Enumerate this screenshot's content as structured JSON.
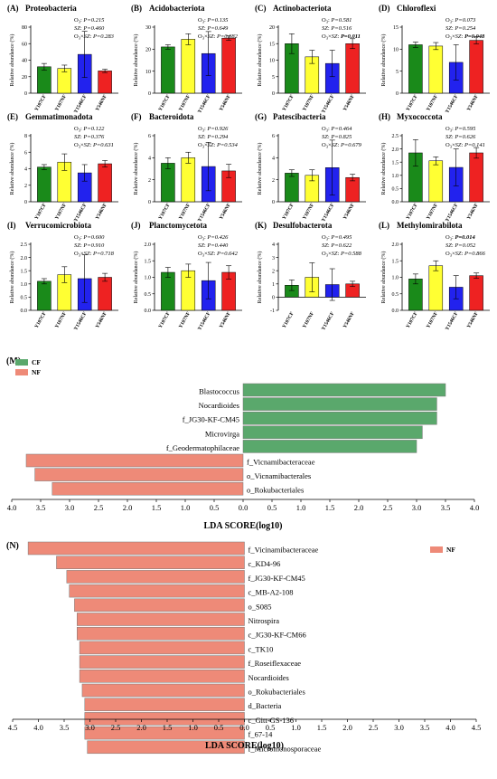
{
  "colors": {
    "Y107CF": "#1a8a1a",
    "Y107NF": "#ffff33",
    "Y1546CF": "#2222ee",
    "Y546NF": "#ee2222",
    "CF": "#5aa86c",
    "NF": "#ee8a78"
  },
  "chart_data": [
    {
      "type": "bar",
      "label": "(A)",
      "title": "Proteobacteria",
      "ylabel": "Relative abundance (%)",
      "categories": [
        "Y107CF",
        "Y107NF",
        "Y1546CF",
        "Y546NF"
      ],
      "ylim": [
        0,
        80
      ],
      "yticks": [
        0,
        20,
        40,
        60,
        80
      ],
      "values": [
        32,
        30,
        47,
        27
      ],
      "errors": [
        4,
        4,
        28,
        2
      ],
      "stats": [
        {
          "label": "O",
          "sub": "3",
          "p": "P=0.215",
          "bold": false
        },
        {
          "label": "SZ",
          "sub": "",
          "p": "P=0.460",
          "bold": false
        },
        {
          "label": "O",
          "sub": "3",
          "x": "SZ",
          "p": "P=0.283",
          "bold": false
        }
      ]
    },
    {
      "type": "bar",
      "label": "(B)",
      "title": "Acidobacteriota",
      "ylabel": "Relative abundance (%)",
      "categories": [
        "Y107CF",
        "Y107NF",
        "Y1546CF",
        "Y546NF"
      ],
      "ylim": [
        0,
        30
      ],
      "yticks": [
        0,
        10,
        20,
        30
      ],
      "values": [
        21,
        24.5,
        18,
        25
      ],
      "errors": [
        1,
        2.5,
        10,
        1
      ],
      "stats": [
        {
          "label": "O",
          "sub": "3",
          "p": "P=0.135",
          "bold": false
        },
        {
          "label": "SZ",
          "sub": "",
          "p": "P=0.649",
          "bold": false
        },
        {
          "label": "O",
          "sub": "3",
          "x": "SZ",
          "p": "P=0.682",
          "bold": false
        }
      ]
    },
    {
      "type": "bar",
      "label": "(C)",
      "title": "Actinobacteriota",
      "ylabel": "Relative abundance (%)",
      "categories": [
        "Y107CF",
        "Y107NF",
        "Y1546CF",
        "Y546NF"
      ],
      "ylim": [
        0,
        20
      ],
      "yticks": [
        0,
        5,
        10,
        15,
        20
      ],
      "values": [
        15,
        11,
        9,
        15
      ],
      "errors": [
        3,
        2,
        4,
        1.5
      ],
      "stats": [
        {
          "label": "O",
          "sub": "3",
          "p": "P=0.581",
          "bold": false
        },
        {
          "label": "SZ",
          "sub": "",
          "p": "P=0.516",
          "bold": false
        },
        {
          "label": "O",
          "sub": "3",
          "x": "SZ",
          "p": "P=0.011",
          "bold": true
        }
      ]
    },
    {
      "type": "bar",
      "label": "(D)",
      "title": "Chloroflexi",
      "ylabel": "Relative abundance (%)",
      "categories": [
        "Y107CF",
        "Y107NF",
        "Y1546CF",
        "Y546NF"
      ],
      "ylim": [
        0,
        15
      ],
      "yticks": [
        0,
        5,
        10,
        15
      ],
      "values": [
        11,
        10.7,
        7,
        12
      ],
      "errors": [
        0.6,
        0.8,
        4,
        0.8
      ],
      "stats": [
        {
          "label": "O",
          "sub": "3",
          "p": "P=0.073",
          "bold": false
        },
        {
          "label": "SZ",
          "sub": "",
          "p": "P=0.254",
          "bold": false
        },
        {
          "label": "O",
          "sub": "3",
          "x": "SZ",
          "p": "P=0.048",
          "bold": true
        }
      ]
    },
    {
      "type": "bar",
      "label": "(E)",
      "title": "Gemmatimonadota",
      "ylabel": "Relative abundance (%)",
      "categories": [
        "Y107CF",
        "Y107NF",
        "Y1546CF",
        "Y546NF"
      ],
      "ylim": [
        0,
        8
      ],
      "yticks": [
        0,
        2,
        4,
        6,
        8
      ],
      "values": [
        4.2,
        4.8,
        3.5,
        4.6
      ],
      "errors": [
        0.3,
        1,
        1,
        0.4
      ],
      "stats": [
        {
          "label": "O",
          "sub": "3",
          "p": "P=0.122",
          "bold": false
        },
        {
          "label": "SZ",
          "sub": "",
          "p": "P=0.376",
          "bold": false
        },
        {
          "label": "O",
          "sub": "3",
          "x": "SZ",
          "p": "P=0.631",
          "bold": false
        }
      ]
    },
    {
      "type": "bar",
      "label": "(F)",
      "title": "Bacteroidota",
      "ylabel": "Relative abundance (%)",
      "categories": [
        "Y107CF",
        "Y107NF",
        "Y1546CF",
        "Y546NF"
      ],
      "ylim": [
        0,
        6
      ],
      "yticks": [
        0,
        2,
        4,
        6
      ],
      "values": [
        3.5,
        4,
        3.2,
        2.8
      ],
      "errors": [
        0.5,
        0.5,
        2.2,
        0.6
      ],
      "stats": [
        {
          "label": "O",
          "sub": "3",
          "p": "P=0.926",
          "bold": false
        },
        {
          "label": "SZ",
          "sub": "",
          "p": "P=0.294",
          "bold": false
        },
        {
          "label": "O",
          "sub": "3",
          "x": "SZ",
          "p": "P=0.534",
          "bold": false
        }
      ]
    },
    {
      "type": "bar",
      "label": "(G)",
      "title": "Patescibacteria",
      "ylabel": "Relative abundance (%)",
      "categories": [
        "Y107CF",
        "Y107NF",
        "Y1546CF",
        "Y546NF"
      ],
      "ylim": [
        0,
        6
      ],
      "yticks": [
        0,
        2,
        4,
        6
      ],
      "values": [
        2.6,
        2.4,
        3.1,
        2.2
      ],
      "errors": [
        0.3,
        0.5,
        2.5,
        0.3
      ],
      "stats": [
        {
          "label": "O",
          "sub": "3",
          "p": "P=0.464",
          "bold": false
        },
        {
          "label": "SZ",
          "sub": "",
          "p": "P=0.825",
          "bold": false
        },
        {
          "label": "O",
          "sub": "3",
          "x": "SZ",
          "p": "P=0.679",
          "bold": false
        }
      ]
    },
    {
      "type": "bar",
      "label": "(H)",
      "title": "Myxococcota",
      "ylabel": "Relative abundance (%)",
      "categories": [
        "Y107CF",
        "Y107NF",
        "Y1546CF",
        "Y546NF"
      ],
      "ylim": [
        0,
        2.5
      ],
      "yticks": [
        0,
        0.5,
        1.0,
        1.5,
        2.0,
        2.5
      ],
      "values": [
        1.85,
        1.55,
        1.3,
        1.85
      ],
      "errors": [
        0.5,
        0.15,
        0.7,
        0.2
      ],
      "stats": [
        {
          "label": "O",
          "sub": "3",
          "p": "P=0.595",
          "bold": false
        },
        {
          "label": "SZ",
          "sub": "",
          "p": "P=0.626",
          "bold": false
        },
        {
          "label": "O",
          "sub": "3",
          "x": "SZ",
          "p": "P=0.141",
          "bold": false
        }
      ]
    },
    {
      "type": "bar",
      "label": "(I)",
      "title": "Verrucomicrobiota",
      "ylabel": "Relative abundance (%)",
      "categories": [
        "Y107CF",
        "Y107NF",
        "Y1546CF",
        "Y546NF"
      ],
      "ylim": [
        0,
        2.5
      ],
      "yticks": [
        0,
        0.5,
        1.0,
        1.5,
        2.0,
        2.5
      ],
      "values": [
        1.1,
        1.35,
        1.2,
        1.25
      ],
      "errors": [
        0.1,
        0.3,
        0.9,
        0.15
      ],
      "stats": [
        {
          "label": "O",
          "sub": "3",
          "p": "P=0.600",
          "bold": false
        },
        {
          "label": "SZ",
          "sub": "",
          "p": "P=0.910",
          "bold": false
        },
        {
          "label": "O",
          "sub": "3",
          "x": "SZ",
          "p": "P=0.718",
          "bold": false
        }
      ]
    },
    {
      "type": "bar",
      "label": "(J)",
      "title": "Planctomycetota",
      "ylabel": "Relative abundance (%)",
      "categories": [
        "Y107CF",
        "Y107NF",
        "Y1546CF",
        "Y546NF"
      ],
      "ylim": [
        0,
        2.0
      ],
      "yticks": [
        0,
        0.5,
        1.0,
        1.5,
        2.0
      ],
      "values": [
        1.15,
        1.2,
        0.9,
        1.15
      ],
      "errors": [
        0.15,
        0.2,
        0.55,
        0.2
      ],
      "stats": [
        {
          "label": "O",
          "sub": "3",
          "p": "P=0.426",
          "bold": false
        },
        {
          "label": "SZ",
          "sub": "",
          "p": "P=0.440",
          "bold": false
        },
        {
          "label": "O",
          "sub": "3",
          "x": "SZ",
          "p": "P=0.642",
          "bold": false
        }
      ]
    },
    {
      "type": "bar",
      "label": "(K)",
      "title": "Desulfobacterota",
      "ylabel": "Relative abundance (%)",
      "categories": [
        "Y107CF",
        "Y107NF",
        "Y1546CF",
        "Y546NF"
      ],
      "ylim": [
        -1,
        4
      ],
      "yticks": [
        -1,
        0,
        1,
        2,
        3,
        4
      ],
      "values": [
        0.9,
        1.5,
        0.95,
        1.0
      ],
      "errors": [
        0.4,
        1.1,
        1.2,
        0.2
      ],
      "stats": [
        {
          "label": "O",
          "sub": "3",
          "p": "P=0.495",
          "bold": false
        },
        {
          "label": "SZ",
          "sub": "",
          "p": "P=0.622",
          "bold": false
        },
        {
          "label": "O",
          "sub": "3",
          "x": "SZ",
          "p": "P=0.588",
          "bold": false
        }
      ]
    },
    {
      "type": "bar",
      "label": "(L)",
      "title": "Methylomirabilota",
      "ylabel": "Relative abundance (%)",
      "categories": [
        "Y107CF",
        "Y107NF",
        "Y1546CF",
        "Y546NF"
      ],
      "ylim": [
        0,
        2.0
      ],
      "yticks": [
        0,
        0.5,
        1.0,
        1.5,
        2.0
      ],
      "values": [
        0.95,
        1.35,
        0.7,
        1.05
      ],
      "errors": [
        0.15,
        0.15,
        0.35,
        0.08
      ],
      "stats": [
        {
          "label": "O",
          "sub": "3",
          "p": "P=0.014",
          "bold": true
        },
        {
          "label": "SZ",
          "sub": "",
          "p": "P=0.052",
          "bold": false
        },
        {
          "label": "O",
          "sub": "3",
          "x": "SZ",
          "p": "P=0.866",
          "bold": false
        }
      ]
    },
    {
      "type": "bar",
      "orientation": "horizontal",
      "label": "(M)",
      "xlabel": "LDA SCORE(log10)",
      "xlim": [
        -4,
        4
      ],
      "xticks": [
        "4.0",
        "3.5",
        "3.0",
        "2.5",
        "2.0",
        "1.5",
        "1.0",
        "0.5",
        "0.0",
        "0.5",
        "1.0",
        "1.5",
        "2.0",
        "2.5",
        "3.0",
        "3.5",
        "4.0"
      ],
      "legend": [
        "CF",
        "NF"
      ],
      "series": [
        {
          "name": "CF",
          "items": [
            {
              "name": "Blastococcus",
              "value": 3.5
            },
            {
              "name": "Nocardioides",
              "value": 3.35
            },
            {
              "name": "f_JG30-KF-CM45",
              "value": 3.35
            },
            {
              "name": "Microvirga",
              "value": 3.1
            },
            {
              "name": "f_Geodermatophilaceae",
              "value": 3.0
            }
          ]
        },
        {
          "name": "NF",
          "items": [
            {
              "name": "f_Vicnamibacteraceae",
              "value": 3.75
            },
            {
              "name": "o_Vicnamibacterales",
              "value": 3.6
            },
            {
              "name": "o_Rokubacteriales",
              "value": 3.3
            }
          ]
        }
      ]
    },
    {
      "type": "bar",
      "orientation": "horizontal",
      "label": "(N)",
      "xlabel": "LDA SCORE(log10)",
      "xlim": [
        -4.5,
        4.5
      ],
      "xticks": [
        "4.5",
        "4.0",
        "3.5",
        "3.0",
        "2.5",
        "2.0",
        "1.5",
        "1.0",
        "0.5",
        "0.0",
        "0.5",
        "1.0",
        "1.5",
        "2.0",
        "2.5",
        "3.0",
        "3.5",
        "4.0",
        "4.5"
      ],
      "legend": [
        "NF"
      ],
      "series": [
        {
          "name": "NF",
          "items": [
            {
              "name": "f_Vicinamibacteraceae",
              "value": 4.2
            },
            {
              "name": "c_KD4-96",
              "value": 3.65
            },
            {
              "name": "f_JG30-KF-CM45",
              "value": 3.45
            },
            {
              "name": "c_MB-A2-108",
              "value": 3.4
            },
            {
              "name": "o_S085",
              "value": 3.3
            },
            {
              "name": "Nitrospira",
              "value": 3.25
            },
            {
              "name": "c_JG30-KF-CM66",
              "value": 3.25
            },
            {
              "name": "c_TK10",
              "value": 3.2
            },
            {
              "name": "f_Roseiflexaceae",
              "value": 3.2
            },
            {
              "name": "Nocardioides",
              "value": 3.2
            },
            {
              "name": "o_Rokubacteriales",
              "value": 3.15
            },
            {
              "name": "d_Bacteria",
              "value": 3.1
            },
            {
              "name": "c_Gitt-GS-136",
              "value": 3.1
            },
            {
              "name": "f_67-14",
              "value": 3.1
            },
            {
              "name": "f_Micromonosporaceae",
              "value": 3.05
            }
          ]
        }
      ]
    }
  ]
}
